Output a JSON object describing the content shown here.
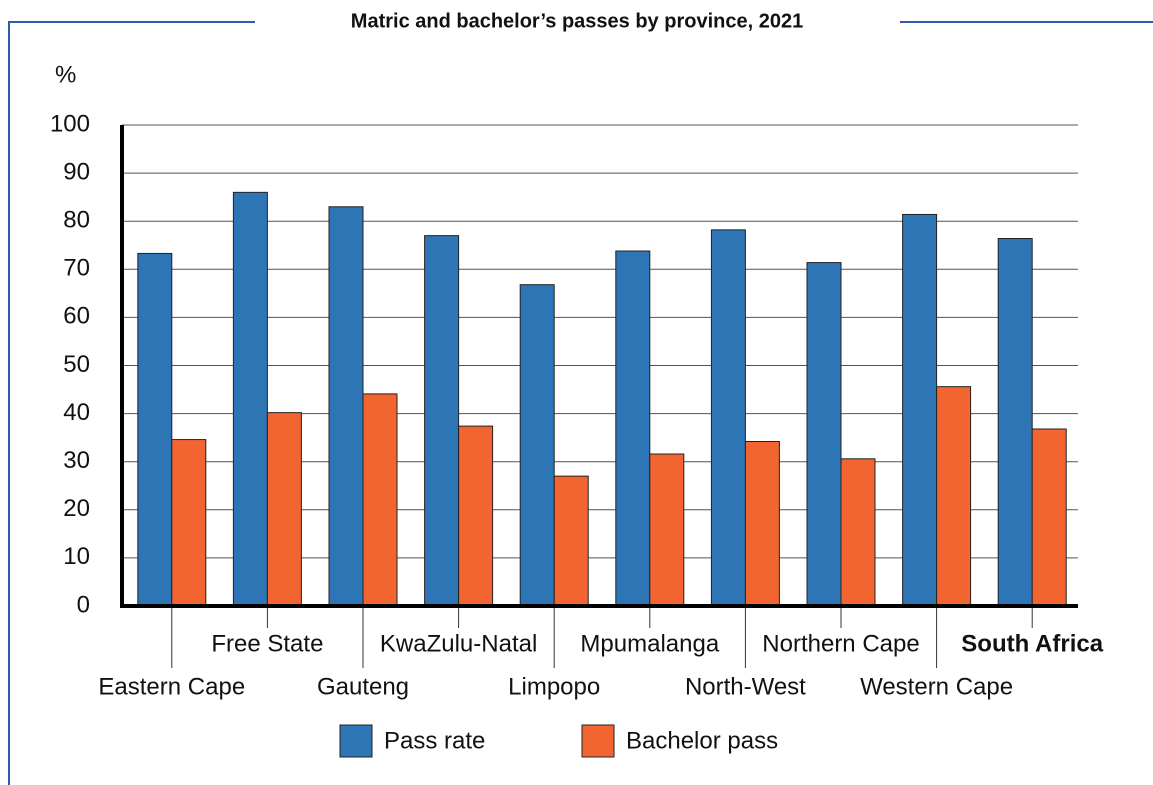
{
  "chart_data": {
    "type": "bar",
    "title": "Matric and bachelor’s passes by province, 2021",
    "y_label": "%",
    "categories": [
      "Eastern Cape",
      "Free State",
      "Gauteng",
      "KwaZulu-Natal",
      "Limpopo",
      "Mpumalanga",
      "North-West",
      "Northern Cape",
      "Western Cape",
      "South Africa"
    ],
    "series": [
      {
        "name": "Pass rate",
        "color": "#2e75b6",
        "values": [
          73.3,
          86,
          83,
          77,
          66.8,
          73.8,
          78.2,
          71.4,
          81.4,
          76.4
        ]
      },
      {
        "name": "Bachelor pass",
        "color": "#f26531",
        "values": [
          34.6,
          40.2,
          44.1,
          37.4,
          27,
          31.6,
          34.2,
          30.6,
          45.6,
          36.8
        ]
      }
    ],
    "ylim": [
      0,
      100
    ],
    "yticks": [
      0,
      10,
      20,
      30,
      40,
      50,
      60,
      70,
      80,
      90,
      100
    ],
    "grid": true,
    "legend": "bottom"
  }
}
